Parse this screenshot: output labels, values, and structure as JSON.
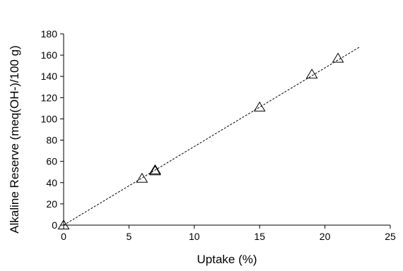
{
  "chart_data": {
    "type": "scatter",
    "title": "",
    "xlabel": "Uptake (%)",
    "ylabel": "Alkaline Reserve (meq(OH-)/100 g)",
    "xlim": [
      0,
      25
    ],
    "ylim": [
      0,
      180
    ],
    "xticks": [
      0,
      5,
      10,
      15,
      20,
      25
    ],
    "yticks": [
      0,
      20,
      40,
      60,
      80,
      100,
      120,
      140,
      160,
      180
    ],
    "grid": false,
    "legend": "none",
    "marker": "open-triangle",
    "series": [
      {
        "points": [
          {
            "x": 0,
            "y": 0
          },
          {
            "x": 6,
            "y": 44
          },
          {
            "x": 7,
            "y": 51
          },
          {
            "x": 7,
            "y": 52
          },
          {
            "x": 15,
            "y": 111
          },
          {
            "x": 19,
            "y": 142
          },
          {
            "x": 21,
            "y": 157
          }
        ]
      }
    ],
    "trendline": {
      "style": "dashed",
      "slope": 7.4,
      "intercept": 0,
      "x_range": [
        0,
        22.7
      ]
    }
  }
}
